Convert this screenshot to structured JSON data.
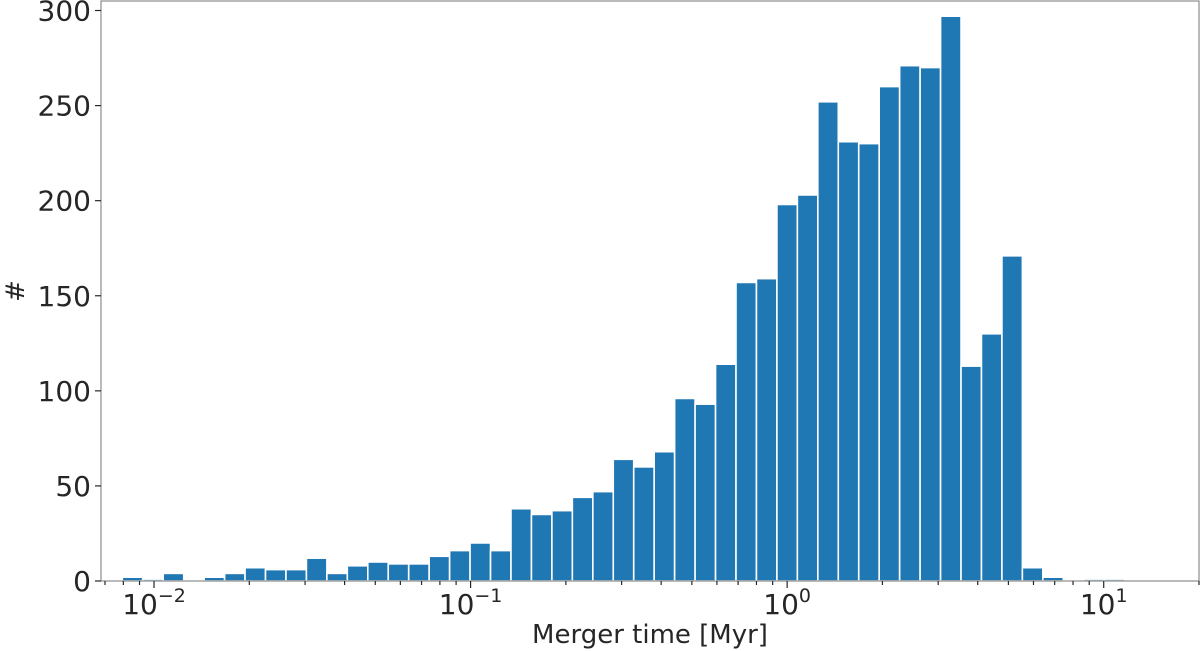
{
  "chart_data": {
    "type": "bar",
    "xlabel": "Merger time [Myr]",
    "ylabel": "#",
    "xscale": "log",
    "xlim": [
      0.0068,
      20
    ],
    "ylim": [
      0,
      305
    ],
    "grid": false,
    "yticks": [
      0,
      50,
      100,
      150,
      200,
      250,
      300
    ],
    "xticks": [
      {
        "value": 0.01,
        "base": "10",
        "exp": "−2"
      },
      {
        "value": 0.1,
        "base": "10",
        "exp": "−1"
      },
      {
        "value": 1,
        "base": "10",
        "exp": "0"
      },
      {
        "value": 10,
        "base": "10",
        "exp": "1"
      }
    ],
    "bin_edges": [
      0.00794,
      0.00921,
      0.01069,
      0.01241,
      0.0144,
      0.01671,
      0.01939,
      0.0225,
      0.02611,
      0.0303,
      0.03516,
      0.0408,
      0.04735,
      0.05494,
      0.06376,
      0.07399,
      0.08586,
      0.09963,
      0.11562,
      0.13417,
      0.15569,
      0.18067,
      0.20965,
      0.24329,
      0.28232,
      0.32761,
      0.38017,
      0.44116,
      0.51194,
      0.59407,
      0.68938,
      0.79998,
      0.92832,
      1.07725,
      1.25008,
      1.45063,
      1.68336,
      1.95342,
      2.26681,
      2.63048,
      3.05249,
      3.54221,
      4.11049,
      4.77,
      5.535,
      6.423,
      7.453,
      8.649,
      10.037,
      11.647,
      13.516,
      15.684,
      18.2
    ],
    "values": [
      2,
      1,
      4,
      0,
      2,
      4,
      7,
      6,
      6,
      12,
      4,
      8,
      10,
      9,
      9,
      13,
      16,
      20,
      16,
      38,
      35,
      37,
      44,
      47,
      64,
      60,
      68,
      96,
      93,
      114,
      157,
      159,
      198,
      203,
      252,
      231,
      230,
      260,
      271,
      270,
      297,
      113,
      130,
      171,
      7,
      2,
      0,
      1,
      1,
      0,
      0,
      0
    ]
  }
}
